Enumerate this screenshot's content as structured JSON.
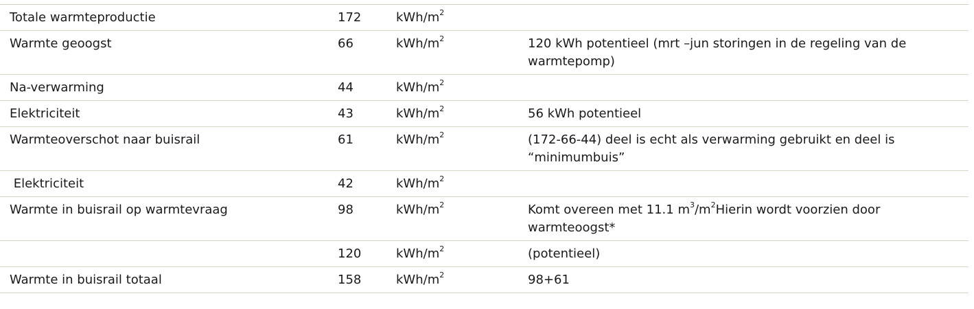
{
  "rows": [
    {
      "label": "Totale warmteproductie",
      "value": "172",
      "unit": "kWh/m",
      "unit_sup": "2",
      "note": ""
    },
    {
      "label": "Warmte geoogst",
      "value": "66",
      "unit": "kWh/m",
      "unit_sup": "2",
      "note": "120 kWh potentieel (mrt –jun storingen in de regeling van de warmtepomp)"
    },
    {
      "label": "Na-verwarming",
      "value": "44",
      "unit": "kWh/m",
      "unit_sup": "2",
      "note": ""
    },
    {
      "label": "Elektriciteit",
      "value": "43",
      "unit": "kWh/m",
      "unit_sup": "2",
      "note": "56 kWh potentieel"
    },
    {
      "label": "Warmteoverschot naar buisrail",
      "value": "61",
      "unit": "kWh/m",
      "unit_sup": "2",
      "note": "(172-66-44) deel is echt als verwarming gebruikt en deel is “minimumbuis”"
    },
    {
      "label": " Elektriciteit",
      "value": "42",
      "unit": "kWh/m",
      "unit_sup": "2",
      "note": ""
    },
    {
      "label": "Warmte in buisrail op warmtevraag",
      "value": "98",
      "unit": "kWh/m",
      "unit_sup": "2",
      "note_parts": {
        "a": "Komt overeen met 11.1 m",
        "sup1": "3",
        "b": "/m",
        "sup2": "2",
        "c": "Hierin wordt voorzien door warmteoogst*"
      }
    },
    {
      "label": "",
      "value": "120",
      "unit": "kWh/m",
      "unit_sup": "2",
      "note": "(potentieel)"
    },
    {
      "label": "Warmte in buisrail totaal",
      "value": "158",
      "unit": "kWh/m",
      "unit_sup": "2",
      "note": "98+61"
    }
  ]
}
